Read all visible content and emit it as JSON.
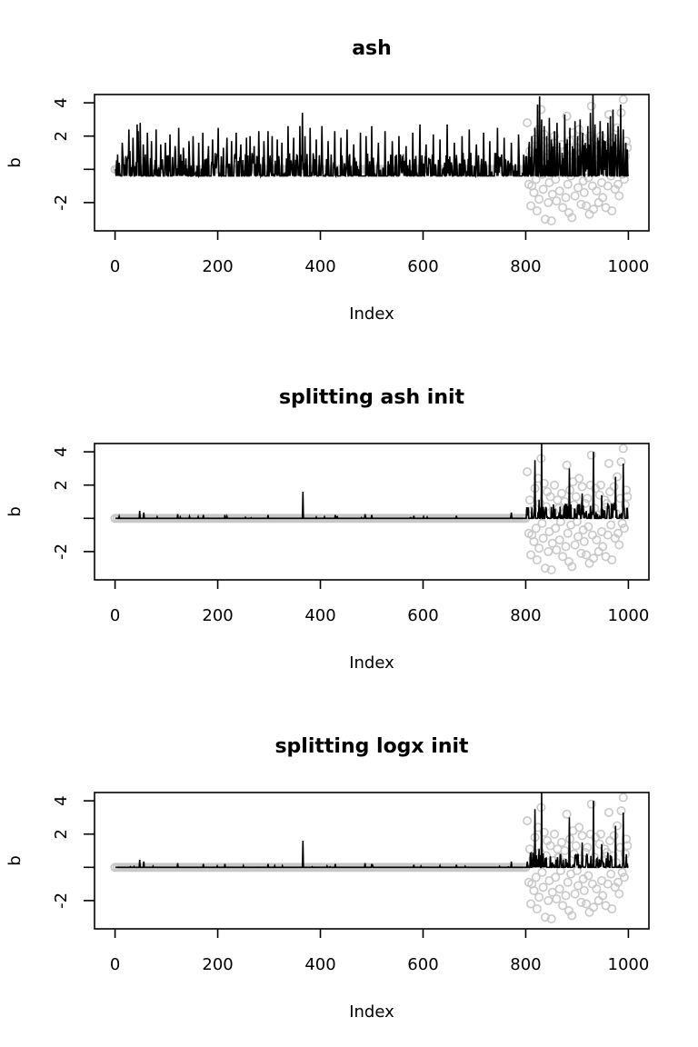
{
  "colors": {
    "estimate_line": "#000000",
    "truth_points": "#c8c8c8",
    "axis": "#000000",
    "background": "#ffffff"
  },
  "chart_data": [
    {
      "type": "line",
      "title": "ash",
      "xlabel": "Index",
      "ylabel": "b",
      "xlim": [
        -40,
        1040
      ],
      "ylim": [
        -3.7,
        4.5
      ],
      "x_ticks": [
        0,
        200,
        400,
        600,
        800,
        1000
      ],
      "x_tick_labels": [
        "0",
        "200",
        "400",
        "600",
        "800",
        "1000"
      ],
      "y_ticks": [
        -2,
        0,
        2,
        4
      ],
      "y_tick_labels": [
        "-2",
        "",
        "2",
        "4"
      ],
      "series": [
        {
          "kind": "line",
          "n": 1000,
          "description_values": {
            "zero_baseline": -0.4,
            "x": [
              8,
              14,
              21,
              27,
              29,
              35,
              43,
              45,
              49,
              55,
              63,
              71,
              80,
              89,
              98,
              107,
              117,
              124,
              133,
              144,
              152,
              163,
              171,
              182,
              190,
              201,
              211,
              218,
              227,
              236,
              245,
              256,
              263,
              271,
              280,
              290,
              298,
              306,
              316,
              325,
              337,
              348,
              360,
              365,
              370,
              380,
              392,
              403,
              415,
              428,
              440,
              452,
              465,
              478,
              489,
              500,
              513,
              526,
              540,
              553,
              567,
              580,
              594,
              606,
              620,
              633,
              647,
              661,
              676,
              690,
              704,
              718,
              730,
              745,
              758,
              772,
              786,
              800,
              806,
              812,
              818,
              823,
              827,
              831,
              836,
              841,
              846,
              851,
              856,
              861,
              866,
              871,
              876,
              881,
              886,
              891,
              896,
              901,
              906,
              911,
              916,
              921,
              926,
              931,
              935,
              940,
              945,
              950,
              955,
              960,
              965,
              970,
              975,
              980,
              985,
              990,
              995,
              998
            ],
            "y": [
              0.4,
              1.6,
              0.8,
              2.4,
              1.1,
              1.9,
              2.7,
              2.3,
              2.8,
              1.5,
              2.2,
              1.7,
              2.4,
              1.5,
              1.6,
              2.1,
              1.4,
              2.5,
              1.3,
              1.7,
              2.0,
              1.6,
              2.2,
              1.4,
              1.8,
              2.5,
              1.3,
              1.9,
              1.7,
              2.2,
              1.5,
              1.9,
              2.0,
              1.4,
              2.3,
              1.7,
              2.3,
              2.0,
              1.8,
              1.6,
              2.6,
              1.9,
              2.6,
              3.4,
              2.0,
              2.5,
              1.8,
              2.6,
              1.7,
              2.3,
              1.9,
              2.4,
              1.5,
              2.2,
              2.0,
              2.6,
              1.6,
              2.3,
              1.7,
              2.0,
              1.4,
              2.2,
              2.7,
              1.5,
              2.1,
              1.8,
              2.7,
              1.6,
              2.0,
              2.4,
              1.5,
              2.2,
              1.7,
              2.5,
              1.9,
              1.6,
              2.1,
              0.8,
              1.2,
              2.0,
              2.5,
              3.9,
              4.4,
              3.0,
              2.6,
              2.0,
              3.1,
              1.2,
              2.3,
              2.8,
              1.6,
              1.0,
              3.3,
              1.8,
              2.5,
              1.4,
              2.9,
              2.0,
              3.0,
              2.2,
              1.6,
              2.6,
              3.4,
              4.5,
              2.7,
              1.9,
              2.9,
              2.3,
              1.7,
              2.8,
              3.2,
              3.6,
              2.1,
              2.6,
              3.9,
              2.4,
              1.6,
              1.2
            ]
          }
        },
        {
          "kind": "scatter",
          "note_ref": "truth"
        }
      ]
    },
    {
      "type": "line",
      "title": "splitting ash init",
      "xlabel": "Index",
      "ylabel": "b",
      "xlim": [
        -40,
        1040
      ],
      "ylim": [
        -3.7,
        4.5
      ],
      "x_ticks": [
        0,
        200,
        400,
        600,
        800,
        1000
      ],
      "x_tick_labels": [
        "0",
        "200",
        "400",
        "600",
        "800",
        "1000"
      ],
      "y_ticks": [
        -2,
        0,
        2,
        4
      ],
      "y_tick_labels": [
        "-2",
        "",
        "2",
        "4"
      ],
      "spikes": {
        "x": [
          48,
          56,
          122,
          172,
          214,
          298,
          366,
          429,
          487,
          500,
          582,
          665,
          772,
          803,
          818,
          826,
          831,
          840,
          852,
          885,
          902,
          910,
          932,
          948,
          960,
          975,
          990
        ],
        "y": [
          0.45,
          0.35,
          0.25,
          0.2,
          0.2,
          0.2,
          1.6,
          0.2,
          0.25,
          0.2,
          0.15,
          0.15,
          0.35,
          0.35,
          3.5,
          1.1,
          4.5,
          0.6,
          0.3,
          3.0,
          0.8,
          1.5,
          4.0,
          1.4,
          0.9,
          2.5,
          3.3
        ]
      }
    },
    {
      "type": "line",
      "title": "splitting logx init",
      "xlabel": "Index",
      "ylabel": "b",
      "xlim": [
        -40,
        1040
      ],
      "ylim": [
        -3.7,
        4.5
      ],
      "x_ticks": [
        0,
        200,
        400,
        600,
        800,
        1000
      ],
      "x_tick_labels": [
        "0",
        "200",
        "400",
        "600",
        "800",
        "1000"
      ],
      "y_ticks": [
        -2,
        0,
        2,
        4
      ],
      "y_tick_labels": [
        "-2",
        "",
        "2",
        "4"
      ],
      "spikes": {
        "x": [
          48,
          56,
          122,
          172,
          214,
          298,
          366,
          429,
          487,
          500,
          582,
          665,
          772,
          803,
          818,
          826,
          831,
          840,
          852,
          885,
          902,
          910,
          932,
          948,
          960,
          975,
          990
        ],
        "y": [
          0.45,
          0.35,
          0.25,
          0.2,
          0.2,
          0.2,
          1.6,
          0.2,
          0.25,
          0.2,
          0.15,
          0.15,
          0.35,
          0.35,
          3.5,
          1.1,
          4.5,
          0.6,
          0.3,
          3.0,
          0.8,
          1.5,
          4.0,
          1.4,
          0.9,
          2.5,
          3.3
        ]
      }
    }
  ],
  "truth": {
    "zero_x_range": [
      0,
      800
    ],
    "signal_x": [
      803,
      806,
      808,
      810,
      812,
      814,
      816,
      818,
      820,
      822,
      824,
      826,
      828,
      830,
      832,
      834,
      836,
      838,
      840,
      842,
      844,
      846,
      848,
      850,
      852,
      854,
      856,
      858,
      860,
      862,
      864,
      866,
      868,
      870,
      872,
      874,
      876,
      878,
      880,
      882,
      884,
      886,
      888,
      890,
      892,
      894,
      896,
      898,
      900,
      902,
      904,
      906,
      908,
      910,
      912,
      914,
      916,
      918,
      920,
      922,
      924,
      926,
      928,
      930,
      932,
      934,
      936,
      938,
      940,
      942,
      944,
      946,
      948,
      950,
      952,
      954,
      956,
      958,
      960,
      962,
      964,
      966,
      968,
      970,
      972,
      974,
      976,
      978,
      980,
      982,
      984,
      986,
      988,
      990,
      992,
      994,
      996,
      998
    ],
    "signal_y": [
      2.8,
      -0.9,
      1.1,
      -2.2,
      -1.0,
      0.5,
      -1.4,
      1.8,
      -0.6,
      -2.5,
      2.4,
      -1.8,
      0.9,
      3.6,
      -0.3,
      -1.2,
      2.1,
      -3.0,
      0.7,
      1.6,
      -2.0,
      -0.8,
      1.3,
      -3.1,
      -1.5,
      0.4,
      2.0,
      -0.6,
      -1.9,
      1.1,
      0.6,
      -1.3,
      -0.2,
      1.5,
      -2.3,
      0.3,
      1.0,
      -1.7,
      3.2,
      -0.9,
      -2.6,
      1.7,
      -0.4,
      -2.9,
      2.2,
      0.8,
      -1.6,
      1.3,
      -0.2,
      -1.1,
      2.4,
      0.5,
      -2.1,
      1.9,
      -0.7,
      -1.4,
      0.9,
      -2.2,
      1.2,
      -0.5,
      -2.7,
      2.0,
      3.8,
      -1.0,
      -2.4,
      0.6,
      1.8,
      -1.3,
      0.2,
      -2.0,
      1.4,
      2.0,
      -0.8,
      -1.7,
      0.4,
      1.1,
      -2.3,
      0.9,
      -1.0,
      3.3,
      1.6,
      -0.4,
      -2.5,
      0.7,
      1.9,
      -1.2,
      0.3,
      2.5,
      -0.9,
      -1.6,
      1.2,
      3.4,
      -0.3,
      4.2,
      -0.6,
      0.8,
      1.7,
      1.3
    ]
  }
}
